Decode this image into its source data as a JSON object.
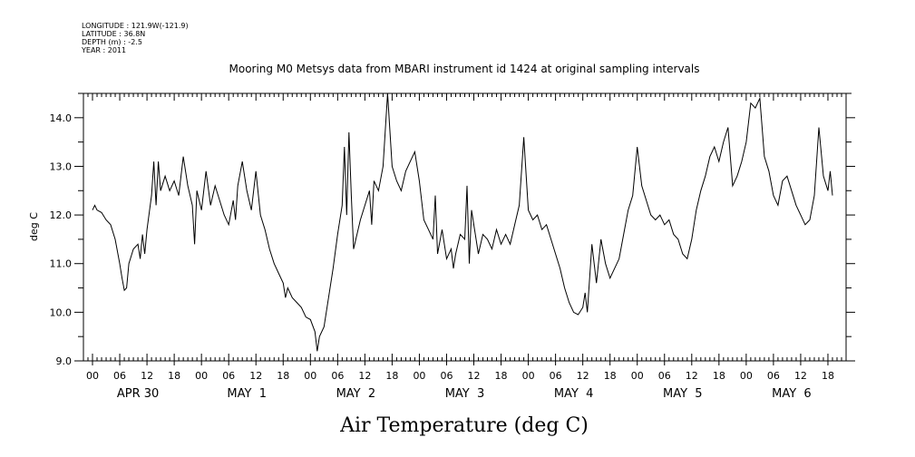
{
  "header": {
    "longitude": "LONGITUDE : 121.9W(-121.9)",
    "latitude": "LATITUDE : 36.8N",
    "depth": "DEPTH (m) : -2.5",
    "year": "YEAR : 2011"
  },
  "chart_data": {
    "type": "line",
    "title": "Mooring M0 Metsys data from MBARI instrument id 1424 at original sampling intervals",
    "xlabel": "Air Temperature (deg C)",
    "ylabel": "deg C",
    "ylim": [
      9.0,
      14.5
    ],
    "xlim_hours": [
      -2,
      166
    ],
    "y_ticks": [
      "9.0",
      "10.0",
      "11.0",
      "12.0",
      "13.0",
      "14.0"
    ],
    "hour_tick_labels": [
      "00",
      "06",
      "12",
      "18"
    ],
    "day_labels": [
      "APR 30",
      "MAY  1",
      "MAY  2",
      "MAY  3",
      "MAY  4",
      "MAY  5",
      "MAY  6"
    ],
    "grid": false,
    "series": [
      {
        "color": "#000000",
        "points": [
          [
            0,
            12.1
          ],
          [
            0.5,
            12.2
          ],
          [
            1,
            12.1
          ],
          [
            2,
            12.05
          ],
          [
            3,
            11.9
          ],
          [
            4,
            11.8
          ],
          [
            5,
            11.5
          ],
          [
            6,
            11.0
          ],
          [
            6.5,
            10.7
          ],
          [
            7,
            10.45
          ],
          [
            7.5,
            10.5
          ],
          [
            8,
            11.0
          ],
          [
            9,
            11.3
          ],
          [
            10,
            11.4
          ],
          [
            10.5,
            11.1
          ],
          [
            11,
            11.6
          ],
          [
            11.5,
            11.2
          ],
          [
            12,
            11.7
          ],
          [
            13,
            12.4
          ],
          [
            13.5,
            13.1
          ],
          [
            14,
            12.2
          ],
          [
            14.5,
            13.1
          ],
          [
            15,
            12.5
          ],
          [
            16,
            12.8
          ],
          [
            17,
            12.5
          ],
          [
            18,
            12.7
          ],
          [
            19,
            12.4
          ],
          [
            20,
            13.2
          ],
          [
            21,
            12.6
          ],
          [
            22,
            12.2
          ],
          [
            22.5,
            11.4
          ],
          [
            23,
            12.5
          ],
          [
            24,
            12.1
          ],
          [
            25,
            12.9
          ],
          [
            26,
            12.2
          ],
          [
            27,
            12.6
          ],
          [
            28,
            12.3
          ],
          [
            29,
            12.0
          ],
          [
            30,
            11.8
          ],
          [
            31,
            12.3
          ],
          [
            31.5,
            11.9
          ],
          [
            32,
            12.6
          ],
          [
            33,
            13.1
          ],
          [
            34,
            12.5
          ],
          [
            35,
            12.1
          ],
          [
            36,
            12.9
          ],
          [
            37,
            12.0
          ],
          [
            38,
            11.7
          ],
          [
            39,
            11.3
          ],
          [
            40,
            11.0
          ],
          [
            41,
            10.8
          ],
          [
            42,
            10.6
          ],
          [
            42.5,
            10.3
          ],
          [
            43,
            10.5
          ],
          [
            44,
            10.3
          ],
          [
            45,
            10.2
          ],
          [
            46,
            10.1
          ],
          [
            47,
            9.9
          ],
          [
            48,
            9.85
          ],
          [
            49,
            9.6
          ],
          [
            49.5,
            9.2
          ],
          [
            50,
            9.5
          ],
          [
            51,
            9.7
          ],
          [
            52,
            10.3
          ],
          [
            53,
            10.9
          ],
          [
            54,
            11.6
          ],
          [
            55,
            12.2
          ],
          [
            55.5,
            13.4
          ],
          [
            56,
            12.0
          ],
          [
            56.5,
            13.7
          ],
          [
            57,
            12.4
          ],
          [
            57.5,
            11.3
          ],
          [
            58,
            11.5
          ],
          [
            59,
            11.9
          ],
          [
            60,
            12.2
          ],
          [
            61,
            12.5
          ],
          [
            61.5,
            11.8
          ],
          [
            62,
            12.7
          ],
          [
            63,
            12.5
          ],
          [
            64,
            13.0
          ],
          [
            65,
            14.5
          ],
          [
            66,
            13.0
          ],
          [
            67,
            12.7
          ],
          [
            68,
            12.5
          ],
          [
            69,
            12.9
          ],
          [
            70,
            13.1
          ],
          [
            71,
            13.3
          ],
          [
            72,
            12.7
          ],
          [
            73,
            11.9
          ],
          [
            74,
            11.7
          ],
          [
            75,
            11.5
          ],
          [
            75.5,
            12.4
          ],
          [
            76,
            11.2
          ],
          [
            77,
            11.7
          ],
          [
            78,
            11.1
          ],
          [
            79,
            11.3
          ],
          [
            79.5,
            10.9
          ],
          [
            80,
            11.2
          ],
          [
            81,
            11.6
          ],
          [
            82,
            11.5
          ],
          [
            82.5,
            12.6
          ],
          [
            83,
            11.0
          ],
          [
            83.5,
            12.1
          ],
          [
            84,
            11.8
          ],
          [
            85,
            11.2
          ],
          [
            86,
            11.6
          ],
          [
            87,
            11.5
          ],
          [
            88,
            11.3
          ],
          [
            89,
            11.7
          ],
          [
            90,
            11.4
          ],
          [
            91,
            11.6
          ],
          [
            92,
            11.4
          ],
          [
            93,
            11.8
          ],
          [
            94,
            12.2
          ],
          [
            95,
            13.6
          ],
          [
            96,
            12.1
          ],
          [
            97,
            11.9
          ],
          [
            98,
            12.0
          ],
          [
            99,
            11.7
          ],
          [
            100,
            11.8
          ],
          [
            101,
            11.5
          ],
          [
            102,
            11.2
          ],
          [
            103,
            10.9
          ],
          [
            104,
            10.5
          ],
          [
            105,
            10.2
          ],
          [
            106,
            10.0
          ],
          [
            107,
            9.95
          ],
          [
            108,
            10.1
          ],
          [
            108.5,
            10.4
          ],
          [
            109,
            10.0
          ],
          [
            110,
            11.4
          ],
          [
            111,
            10.6
          ],
          [
            112,
            11.5
          ],
          [
            113,
            11.0
          ],
          [
            114,
            10.7
          ],
          [
            115,
            10.9
          ],
          [
            116,
            11.1
          ],
          [
            117,
            11.6
          ],
          [
            118,
            12.1
          ],
          [
            119,
            12.4
          ],
          [
            120,
            13.4
          ],
          [
            121,
            12.6
          ],
          [
            122,
            12.3
          ],
          [
            123,
            12.0
          ],
          [
            124,
            11.9
          ],
          [
            125,
            12.0
          ],
          [
            126,
            11.8
          ],
          [
            127,
            11.9
          ],
          [
            128,
            11.6
          ],
          [
            129,
            11.5
          ],
          [
            130,
            11.2
          ],
          [
            131,
            11.1
          ],
          [
            132,
            11.5
          ],
          [
            133,
            12.1
          ],
          [
            134,
            12.5
          ],
          [
            135,
            12.8
          ],
          [
            136,
            13.2
          ],
          [
            137,
            13.4
          ],
          [
            138,
            13.1
          ],
          [
            139,
            13.5
          ],
          [
            140,
            13.8
          ],
          [
            141,
            12.6
          ],
          [
            142,
            12.8
          ],
          [
            143,
            13.1
          ],
          [
            144,
            13.5
          ],
          [
            145,
            14.3
          ],
          [
            146,
            14.2
          ],
          [
            147,
            14.4
          ],
          [
            148,
            13.2
          ],
          [
            149,
            12.9
          ],
          [
            150,
            12.4
          ],
          [
            151,
            12.2
          ],
          [
            152,
            12.7
          ],
          [
            153,
            12.8
          ],
          [
            154,
            12.5
          ],
          [
            155,
            12.2
          ],
          [
            156,
            12.0
          ],
          [
            157,
            11.8
          ],
          [
            158,
            11.9
          ],
          [
            159,
            12.4
          ],
          [
            160,
            13.8
          ],
          [
            161,
            12.8
          ],
          [
            162,
            12.5
          ],
          [
            162.5,
            12.9
          ],
          [
            163,
            12.4
          ]
        ]
      }
    ]
  }
}
